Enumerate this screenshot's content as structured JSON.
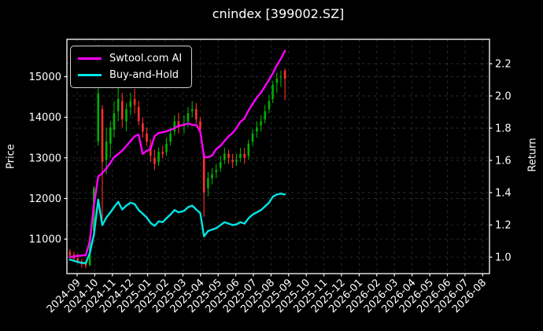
{
  "chart_data": {
    "type": "candlestick+line",
    "title": "cnindex [399002.SZ]",
    "ylabel_left": "Price",
    "ylabel_right": "Return",
    "grid": true,
    "legend_position": "upper left",
    "background": "#000000",
    "colors": {
      "up": "#00b000",
      "down": "#ff2f2f",
      "grid": "#2f2f2f",
      "text": "#ffffff",
      "spine": "#ffffff"
    },
    "x_tick_labels": [
      "2024-09",
      "2024-10",
      "2024-11",
      "2024-12",
      "2025-01",
      "2025-02",
      "2025-03",
      "2025-04",
      "2025-05",
      "2025-06",
      "2025-07",
      "2025-08",
      "2025-09",
      "2025-10",
      "2025-11",
      "2025-12",
      "2026-01",
      "2026-02",
      "2026-03",
      "2026-04",
      "2026-05",
      "2026-06",
      "2026-07",
      "2026-08"
    ],
    "x_range_months": [
      -0.58,
      23.39
    ],
    "price_axis": {
      "min": 10150,
      "max": 15920,
      "ticks": [
        11000,
        12000,
        13000,
        14000,
        15000
      ]
    },
    "return_axis": {
      "min": 0.898,
      "max": 2.351,
      "ticks": [
        1.0,
        1.2,
        1.4,
        1.6,
        1.8,
        2.0,
        2.2
      ]
    },
    "dates": [
      "2024-08-19",
      "2024-08-26",
      "2024-09-02",
      "2024-09-09",
      "2024-09-16",
      "2024-09-23",
      "2024-09-30",
      "2024-10-07",
      "2024-10-14",
      "2024-10-21",
      "2024-10-28",
      "2024-11-04",
      "2024-11-11",
      "2024-11-18",
      "2024-11-25",
      "2024-12-02",
      "2024-12-09",
      "2024-12-16",
      "2024-12-23",
      "2024-12-30",
      "2025-01-06",
      "2025-01-13",
      "2025-01-20",
      "2025-01-27",
      "2025-02-03",
      "2025-02-10",
      "2025-02-17",
      "2025-02-24",
      "2025-03-03",
      "2025-03-10",
      "2025-03-17",
      "2025-03-24",
      "2025-03-31",
      "2025-04-07",
      "2025-04-14",
      "2025-04-21",
      "2025-04-28",
      "2025-05-05",
      "2025-05-12",
      "2025-05-19",
      "2025-05-26",
      "2025-06-02",
      "2025-06-09",
      "2025-06-16",
      "2025-06-23",
      "2025-06-30",
      "2025-07-07",
      "2025-07-14",
      "2025-07-21",
      "2025-07-28",
      "2025-08-04",
      "2025-08-11",
      "2025-08-18",
      "2025-08-25"
    ],
    "ohlc": [
      [
        10680,
        10750,
        10560,
        10600
      ],
      [
        10610,
        10690,
        10480,
        10520
      ],
      [
        10530,
        10640,
        10400,
        10440
      ],
      [
        10450,
        10520,
        10300,
        10380
      ],
      [
        10390,
        10480,
        10280,
        10350
      ],
      [
        10360,
        11120,
        10330,
        11050
      ],
      [
        11200,
        12300,
        11150,
        12250
      ],
      [
        13400,
        15780,
        13300,
        14590
      ],
      [
        14200,
        14300,
        11450,
        12900
      ],
      [
        12950,
        13750,
        12600,
        13400
      ],
      [
        13350,
        13900,
        13000,
        13750
      ],
      [
        13700,
        14400,
        13500,
        14100
      ],
      [
        14150,
        15050,
        13900,
        14450
      ],
      [
        14400,
        14600,
        13750,
        13950
      ],
      [
        13900,
        14350,
        13650,
        14200
      ],
      [
        14250,
        14600,
        14050,
        14400
      ],
      [
        14450,
        14700,
        14100,
        14300
      ],
      [
        14250,
        14400,
        13800,
        13900
      ],
      [
        13850,
        14000,
        13500,
        13650
      ],
      [
        13600,
        13750,
        13300,
        13400
      ],
      [
        13300,
        13450,
        12900,
        13050
      ],
      [
        13000,
        13200,
        12700,
        12850
      ],
      [
        12900,
        13250,
        12800,
        13150
      ],
      [
        13150,
        13300,
        13000,
        13100
      ],
      [
        13150,
        13500,
        13050,
        13350
      ],
      [
        13400,
        13750,
        13300,
        13600
      ],
      [
        13650,
        14050,
        13550,
        13900
      ],
      [
        13900,
        14100,
        13600,
        13750
      ],
      [
        13800,
        14050,
        13600,
        13850
      ],
      [
        13900,
        14250,
        13750,
        14100
      ],
      [
        14150,
        14400,
        14000,
        14200
      ],
      [
        14200,
        14350,
        13850,
        13950
      ],
      [
        13900,
        14000,
        13550,
        13700
      ],
      [
        13100,
        13150,
        11550,
        12150
      ],
      [
        12250,
        12650,
        12050,
        12500
      ],
      [
        12500,
        12750,
        12350,
        12600
      ],
      [
        12650,
        12850,
        12500,
        12700
      ],
      [
        12750,
        13050,
        12650,
        12900
      ],
      [
        12950,
        13250,
        12850,
        13100
      ],
      [
        13100,
        13200,
        12850,
        13000
      ],
      [
        12950,
        13100,
        12750,
        12900
      ],
      [
        12900,
        13100,
        12800,
        12950
      ],
      [
        13000,
        13250,
        12900,
        13100
      ],
      [
        13100,
        13250,
        12850,
        13000
      ],
      [
        13050,
        13450,
        12950,
        13350
      ],
      [
        13400,
        13700,
        13300,
        13600
      ],
      [
        13650,
        13900,
        13500,
        13750
      ],
      [
        13800,
        14050,
        13650,
        13900
      ],
      [
        13950,
        14300,
        13850,
        14150
      ],
      [
        14200,
        14550,
        14100,
        14400
      ],
      [
        14450,
        14900,
        14350,
        14800
      ],
      [
        14850,
        15100,
        14600,
        14950
      ],
      [
        15000,
        15150,
        14750,
        15000
      ],
      [
        15150,
        15200,
        14420,
        14950
      ]
    ],
    "series": [
      {
        "name": "Swtool.com AI",
        "axis": "return",
        "color": "#ff00ff",
        "values": [
          1.0,
          1.005,
          1.008,
          1.01,
          1.012,
          1.1,
          1.32,
          1.5,
          1.52,
          1.55,
          1.585,
          1.62,
          1.64,
          1.66,
          1.69,
          1.72,
          1.75,
          1.76,
          1.64,
          1.66,
          1.67,
          1.75,
          1.77,
          1.775,
          1.78,
          1.79,
          1.8,
          1.815,
          1.82,
          1.83,
          1.82,
          1.82,
          1.78,
          1.62,
          1.62,
          1.63,
          1.67,
          1.69,
          1.72,
          1.75,
          1.77,
          1.8,
          1.84,
          1.86,
          1.91,
          1.95,
          1.99,
          2.02,
          2.06,
          2.1,
          2.14,
          2.19,
          2.23,
          2.28
        ]
      },
      {
        "name": "Buy-and-Hold",
        "axis": "return",
        "color": "#00e5e5",
        "values": [
          0.985,
          0.978,
          0.97,
          0.965,
          0.962,
          1.027,
          1.138,
          1.356,
          1.199,
          1.245,
          1.278,
          1.31,
          1.343,
          1.296,
          1.32,
          1.338,
          1.329,
          1.292,
          1.269,
          1.245,
          1.213,
          1.194,
          1.222,
          1.217,
          1.241,
          1.264,
          1.292,
          1.278,
          1.287,
          1.31,
          1.32,
          1.296,
          1.273,
          1.129,
          1.162,
          1.171,
          1.18,
          1.199,
          1.217,
          1.208,
          1.199,
          1.203,
          1.217,
          1.208,
          1.241,
          1.264,
          1.278,
          1.292,
          1.315,
          1.338,
          1.375,
          1.389,
          1.394,
          1.389
        ]
      }
    ]
  }
}
